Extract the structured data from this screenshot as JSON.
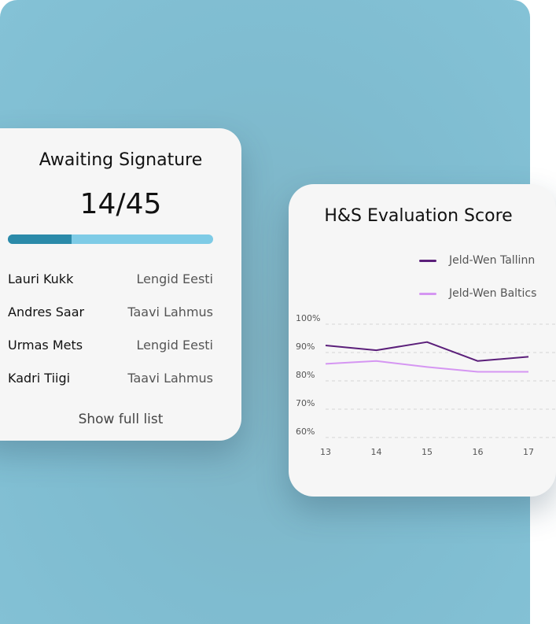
{
  "signature_card": {
    "title": "Awaiting Signature",
    "count": "14/45",
    "progress_fraction": 0.311,
    "colors": {
      "progress_fill": "#2b8aa9",
      "progress_track": "#7ecbe6"
    },
    "rows": [
      {
        "name": "Lauri Kukk",
        "company": "Lengid Eesti"
      },
      {
        "name": "Andres Saar",
        "company": "Taavi Lahmus"
      },
      {
        "name": "Urmas Mets",
        "company": "Lengid Eesti"
      },
      {
        "name": "Kadri Tiigi",
        "company": "Taavi Lahmus"
      }
    ],
    "show_full_label": "Show full list"
  },
  "score_card": {
    "title": "H&S Evaluation Score"
  },
  "chart_data": {
    "type": "line",
    "title": "H&S Evaluation Score",
    "x": [
      "13",
      "14",
      "15",
      "16",
      "17"
    ],
    "y_ticks": [
      "100%",
      "90%",
      "80%",
      "70%",
      "60%"
    ],
    "ylim": [
      60,
      100
    ],
    "grid": true,
    "legend_position": "top-right",
    "series": [
      {
        "name": "Jeld-Wen Tallinn",
        "color": "#5b1f7a",
        "values": [
          92.5,
          90.8,
          93.7,
          87,
          88.5
        ]
      },
      {
        "name": "Jeld-Wen Baltics",
        "color": "#d596f2",
        "values": [
          86,
          87,
          84.9,
          83.2,
          83.2
        ]
      }
    ]
  }
}
